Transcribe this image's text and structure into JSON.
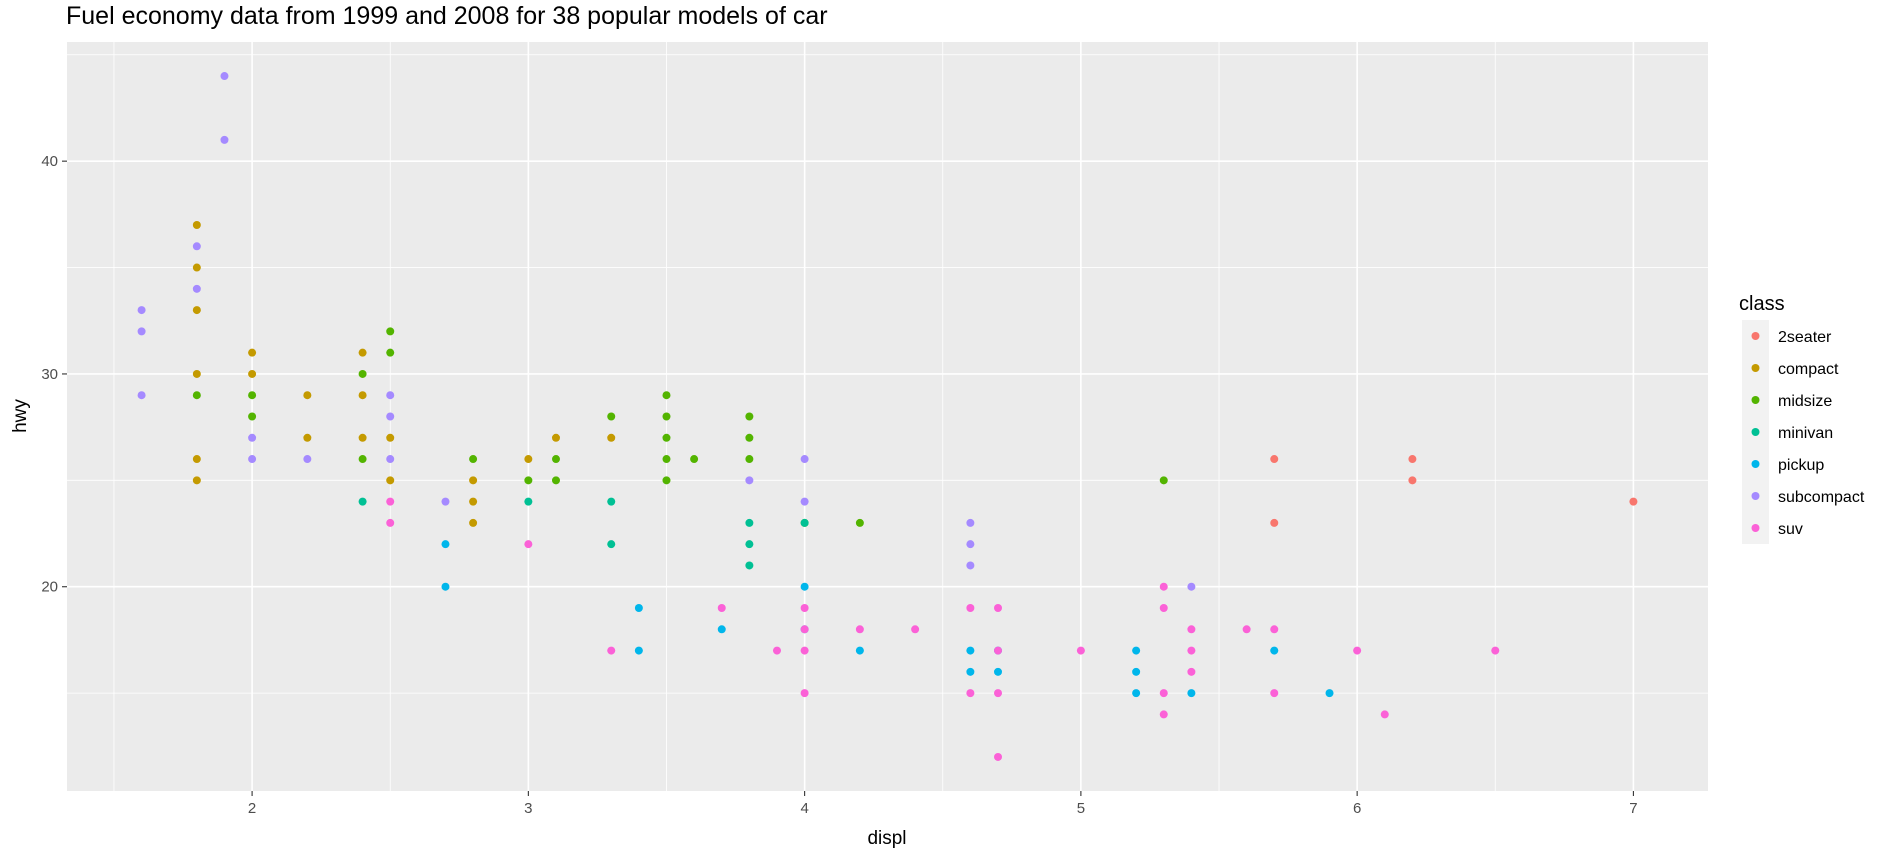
{
  "chart_data": {
    "type": "scatter",
    "title": "Fuel economy data from 1999 and 2008 for 38 popular models of car",
    "xlabel": "displ",
    "ylabel": "hwy",
    "xlim": [
      1.33,
      7.27
    ],
    "ylim": [
      10.4,
      45.6
    ],
    "x_ticks": [
      "2",
      "3",
      "4",
      "5",
      "6",
      "7"
    ],
    "y_ticks": [
      "20",
      "30",
      "40"
    ],
    "grid": true,
    "legend": {
      "title": "class",
      "placement": "right"
    },
    "series": [
      {
        "name": "2seater",
        "color": "#F8766D",
        "points": [
          [
            5.7,
            26
          ],
          [
            5.7,
            23
          ],
          [
            6.2,
            26
          ],
          [
            6.2,
            25
          ],
          [
            7.0,
            24
          ]
        ]
      },
      {
        "name": "compact",
        "color": "#C49A00",
        "points": [
          [
            1.8,
            37
          ],
          [
            1.8,
            35
          ],
          [
            1.8,
            33
          ],
          [
            1.8,
            30
          ],
          [
            1.8,
            26
          ],
          [
            1.8,
            25
          ],
          [
            2.0,
            31
          ],
          [
            2.0,
            30
          ],
          [
            2.2,
            29
          ],
          [
            2.2,
            27
          ],
          [
            2.4,
            31
          ],
          [
            2.4,
            29
          ],
          [
            2.4,
            27
          ],
          [
            2.5,
            27
          ],
          [
            2.5,
            25
          ],
          [
            2.8,
            25
          ],
          [
            2.8,
            24
          ],
          [
            2.8,
            23
          ],
          [
            3.0,
            26
          ],
          [
            3.1,
            27
          ],
          [
            3.3,
            27
          ]
        ]
      },
      {
        "name": "midsize",
        "color": "#53B400",
        "points": [
          [
            1.8,
            29
          ],
          [
            2.0,
            29
          ],
          [
            2.0,
            28
          ],
          [
            2.4,
            30
          ],
          [
            2.4,
            26
          ],
          [
            2.5,
            32
          ],
          [
            2.5,
            31
          ],
          [
            2.8,
            26
          ],
          [
            3.0,
            25
          ],
          [
            3.1,
            26
          ],
          [
            3.1,
            25
          ],
          [
            3.3,
            28
          ],
          [
            3.5,
            29
          ],
          [
            3.5,
            28
          ],
          [
            3.5,
            27
          ],
          [
            3.5,
            26
          ],
          [
            3.5,
            25
          ],
          [
            3.6,
            26
          ],
          [
            3.8,
            28
          ],
          [
            3.8,
            27
          ],
          [
            3.8,
            26
          ],
          [
            4.0,
            23
          ],
          [
            4.2,
            23
          ],
          [
            5.3,
            25
          ]
        ]
      },
      {
        "name": "minivan",
        "color": "#00C094",
        "points": [
          [
            2.4,
            24
          ],
          [
            3.0,
            24
          ],
          [
            3.3,
            24
          ],
          [
            3.3,
            22
          ],
          [
            3.8,
            23
          ],
          [
            3.8,
            22
          ],
          [
            3.8,
            21
          ],
          [
            4.0,
            23
          ]
        ]
      },
      {
        "name": "pickup",
        "color": "#00B6EB",
        "points": [
          [
            2.7,
            22
          ],
          [
            2.7,
            20
          ],
          [
            3.4,
            19
          ],
          [
            3.4,
            17
          ],
          [
            3.7,
            18
          ],
          [
            4.0,
            20
          ],
          [
            4.0,
            18
          ],
          [
            4.2,
            17
          ],
          [
            4.6,
            17
          ],
          [
            4.6,
            16
          ],
          [
            4.7,
            17
          ],
          [
            4.7,
            16
          ],
          [
            5.2,
            17
          ],
          [
            5.2,
            16
          ],
          [
            5.2,
            15
          ],
          [
            5.4,
            15
          ],
          [
            5.7,
            17
          ],
          [
            5.9,
            15
          ]
        ]
      },
      {
        "name": "subcompact",
        "color": "#A58AFF",
        "points": [
          [
            1.6,
            33
          ],
          [
            1.6,
            32
          ],
          [
            1.6,
            29
          ],
          [
            1.8,
            36
          ],
          [
            1.8,
            34
          ],
          [
            1.9,
            44
          ],
          [
            1.9,
            41
          ],
          [
            2.0,
            27
          ],
          [
            2.0,
            26
          ],
          [
            2.2,
            26
          ],
          [
            2.5,
            29
          ],
          [
            2.5,
            28
          ],
          [
            2.5,
            26
          ],
          [
            2.7,
            24
          ],
          [
            3.8,
            25
          ],
          [
            4.0,
            26
          ],
          [
            4.0,
            24
          ],
          [
            4.6,
            23
          ],
          [
            4.6,
            22
          ],
          [
            4.6,
            21
          ],
          [
            5.4,
            20
          ]
        ]
      },
      {
        "name": "suv",
        "color": "#FB61D7",
        "points": [
          [
            2.5,
            24
          ],
          [
            2.5,
            23
          ],
          [
            3.0,
            22
          ],
          [
            3.3,
            17
          ],
          [
            3.7,
            19
          ],
          [
            3.9,
            17
          ],
          [
            4.0,
            19
          ],
          [
            4.0,
            18
          ],
          [
            4.0,
            17
          ],
          [
            4.0,
            15
          ],
          [
            4.2,
            18
          ],
          [
            4.4,
            18
          ],
          [
            4.6,
            19
          ],
          [
            4.6,
            15
          ],
          [
            4.7,
            19
          ],
          [
            4.7,
            17
          ],
          [
            4.7,
            15
          ],
          [
            4.7,
            12
          ],
          [
            5.0,
            17
          ],
          [
            5.3,
            20
          ],
          [
            5.3,
            19
          ],
          [
            5.3,
            15
          ],
          [
            5.3,
            14
          ],
          [
            5.4,
            18
          ],
          [
            5.4,
            17
          ],
          [
            5.4,
            16
          ],
          [
            5.6,
            18
          ],
          [
            5.7,
            18
          ],
          [
            5.7,
            15
          ],
          [
            6.0,
            17
          ],
          [
            6.1,
            14
          ],
          [
            6.5,
            17
          ]
        ]
      }
    ]
  }
}
